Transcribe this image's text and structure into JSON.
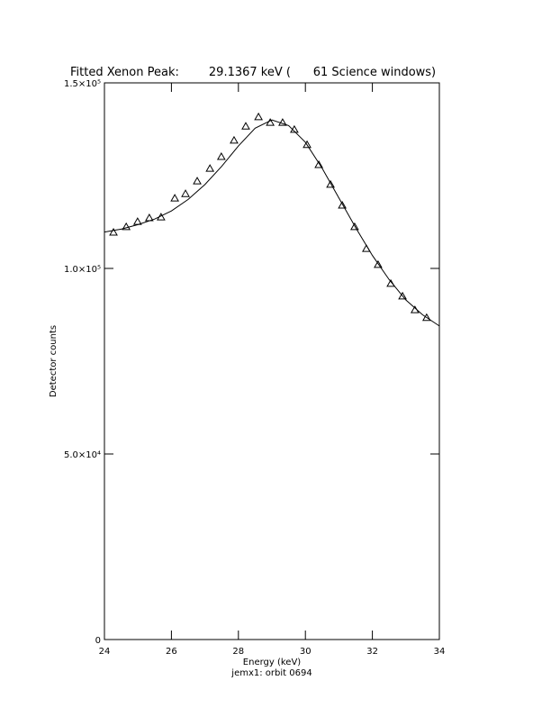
{
  "chart_data": {
    "type": "scatter",
    "title": "Fitted Xenon Peak:        29.1367 keV (      61 Science windows)",
    "x_label": "Energy (keV)",
    "y_label": "Detector counts",
    "subtitle": "jemx1: orbit 0694",
    "xlim": [
      24,
      34
    ],
    "xticks": [
      24,
      26,
      28,
      30,
      32,
      34
    ],
    "ylim": [
      0,
      150000
    ],
    "yticks": [
      0,
      {
        "value": 50000,
        "label": "5.0×10⁴"
      },
      {
        "value": 100000,
        "label": "1.0×10⁵"
      },
      {
        "value": 150000,
        "label": "1.5×10⁵"
      }
    ],
    "series": [
      {
        "type": "scatter",
        "color": "#000000",
        "x": [
          24.27,
          24.65,
          24.99,
          25.34,
          25.69,
          26.1,
          26.42,
          26.77,
          27.15,
          27.49,
          27.87,
          28.22,
          28.6,
          28.95,
          29.32,
          29.67,
          30.05,
          30.4,
          30.75,
          31.1,
          31.47,
          31.82,
          32.17,
          32.55,
          32.9,
          33.27,
          33.62
        ],
        "values": [
          109700,
          111200,
          112600,
          113600,
          113800,
          118900,
          120100,
          123500,
          126900,
          130100,
          134500,
          138300,
          140800,
          139300,
          139300,
          137400,
          133300,
          127900,
          122600,
          117000,
          111200,
          105300,
          101000,
          95900,
          92500,
          88800,
          86700
        ]
      },
      {
        "type": "line",
        "color": "#000000",
        "x": [
          24,
          24.5,
          25,
          25.5,
          26,
          26.5,
          27,
          27.5,
          28,
          28.5,
          29,
          29.5,
          30,
          30.5,
          31,
          31.5,
          32,
          32.5,
          33,
          33.5,
          34
        ],
        "values": [
          109800,
          110600,
          111800,
          113300,
          115500,
          118600,
          122600,
          127500,
          133000,
          137800,
          140000,
          138500,
          134000,
          127000,
          119000,
          111000,
          103500,
          97000,
          91500,
          87500,
          84500
        ]
      }
    ]
  }
}
